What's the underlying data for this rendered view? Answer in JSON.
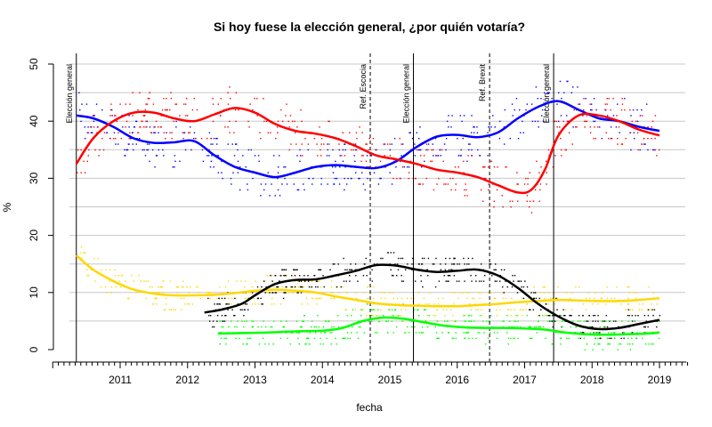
{
  "chart_data": {
    "type": "scatter",
    "title": "Si hoy fuese la elección general, ¿por quién votaría?",
    "xlabel": "fecha",
    "ylabel": "%",
    "xlim": [
      2010.0,
      2019.4
    ],
    "ylim": [
      0,
      50
    ],
    "x_ticks": [
      2011,
      2012,
      2013,
      2014,
      2015,
      2016,
      2017,
      2018,
      2019
    ],
    "y_ticks": [
      0,
      10,
      20,
      30,
      40,
      50
    ],
    "grid": "horizontal",
    "events": [
      {
        "label": "Elección general",
        "x": 2010.35,
        "style": "solid"
      },
      {
        "label": "Ref. Escocia",
        "x": 2014.71,
        "style": "dashed"
      },
      {
        "label": "Elección general",
        "x": 2015.35,
        "style": "solid"
      },
      {
        "label": "Ref. Brexit",
        "x": 2016.48,
        "style": "dashed"
      },
      {
        "label": "Elección general",
        "x": 2017.43,
        "style": "solid"
      }
    ],
    "series": [
      {
        "color": "#0000ff",
        "x": [
          2010.35,
          2010.6,
          2010.9,
          2011.2,
          2011.5,
          2011.8,
          2012.1,
          2012.4,
          2012.7,
          2013.0,
          2013.3,
          2013.6,
          2013.9,
          2014.2,
          2014.5,
          2014.8,
          2015.1,
          2015.4,
          2015.7,
          2016.0,
          2016.3,
          2016.6,
          2016.9,
          2017.2,
          2017.5,
          2017.8,
          2018.1,
          2018.4,
          2018.7,
          2019.0
        ],
        "y": [
          41,
          40.5,
          39,
          37,
          36.2,
          36.3,
          36.5,
          34,
          32,
          31,
          30.2,
          31,
          32,
          32.3,
          32,
          31.8,
          33,
          35.5,
          37.3,
          37.6,
          37.2,
          38,
          40.5,
          42.5,
          43.5,
          42,
          40.5,
          40,
          39,
          38.3
        ]
      },
      {
        "color": "#ff0000",
        "x": [
          2010.35,
          2010.6,
          2010.9,
          2011.2,
          2011.5,
          2011.8,
          2012.1,
          2012.4,
          2012.7,
          2013.0,
          2013.3,
          2013.6,
          2013.9,
          2014.2,
          2014.5,
          2014.8,
          2015.1,
          2015.4,
          2015.7,
          2016.0,
          2016.3,
          2016.6,
          2016.9,
          2017.1,
          2017.3,
          2017.5,
          2017.8,
          2018.1,
          2018.4,
          2018.7,
          2019.0
        ],
        "y": [
          32.5,
          37,
          40,
          41.5,
          41.5,
          40.5,
          40,
          41.2,
          42.3,
          41.5,
          39.5,
          38.3,
          37.8,
          37,
          35.6,
          34,
          33.3,
          32.5,
          31.5,
          31,
          30.2,
          28.8,
          27.5,
          28,
          31.5,
          37.5,
          41,
          41,
          40,
          38.5,
          37.5
        ]
      },
      {
        "color": "#ffd700",
        "x": [
          2010.35,
          2010.6,
          2010.9,
          2011.2,
          2011.5,
          2011.8,
          2012.1,
          2012.4,
          2012.7,
          2013.0,
          2013.3,
          2013.6,
          2013.9,
          2014.2,
          2014.5,
          2014.8,
          2015.1,
          2015.4,
          2015.7,
          2016.0,
          2016.3,
          2016.6,
          2016.9,
          2017.2,
          2017.5,
          2017.8,
          2018.1,
          2018.4,
          2018.7,
          2019.0
        ],
        "y": [
          16.5,
          14,
          12,
          10.5,
          9.8,
          9.5,
          9.5,
          9.6,
          9.9,
          10.3,
          10.5,
          10.3,
          10,
          9.3,
          8.7,
          8.1,
          7.8,
          7.7,
          7.6,
          7.6,
          7.8,
          8,
          8.3,
          8.5,
          8.7,
          8.6,
          8.5,
          8.5,
          8.7,
          9
        ]
      },
      {
        "color": "#000000",
        "x": [
          2012.25,
          2012.5,
          2012.8,
          2013.0,
          2013.3,
          2013.6,
          2013.9,
          2014.2,
          2014.5,
          2014.8,
          2015.1,
          2015.4,
          2015.7,
          2016.0,
          2016.3,
          2016.6,
          2016.9,
          2017.2,
          2017.5,
          2017.8,
          2018.1,
          2018.4,
          2018.7,
          2019.0
        ],
        "y": [
          6.5,
          7,
          8,
          9.5,
          11.5,
          12.2,
          12.3,
          13,
          13.8,
          14.8,
          14.7,
          14,
          13.6,
          13.8,
          14,
          13,
          10.8,
          8,
          5.8,
          4.2,
          3.6,
          3.8,
          4.5,
          5.2
        ]
      },
      {
        "color": "#00ff00",
        "x": [
          2012.45,
          2012.8,
          2013.2,
          2013.6,
          2014.0,
          2014.3,
          2014.6,
          2014.9,
          2015.2,
          2015.5,
          2015.8,
          2016.1,
          2016.4,
          2016.7,
          2017.0,
          2017.3,
          2017.6,
          2017.9,
          2018.2,
          2018.5,
          2018.8,
          2019.0
        ],
        "y": [
          2.8,
          2.9,
          3,
          3.2,
          3.3,
          3.8,
          5,
          5.6,
          5.4,
          4.8,
          4.2,
          3.9,
          3.8,
          3.8,
          3.7,
          3.5,
          3,
          2.7,
          2.6,
          2.7,
          2.8,
          3
        ]
      }
    ]
  }
}
